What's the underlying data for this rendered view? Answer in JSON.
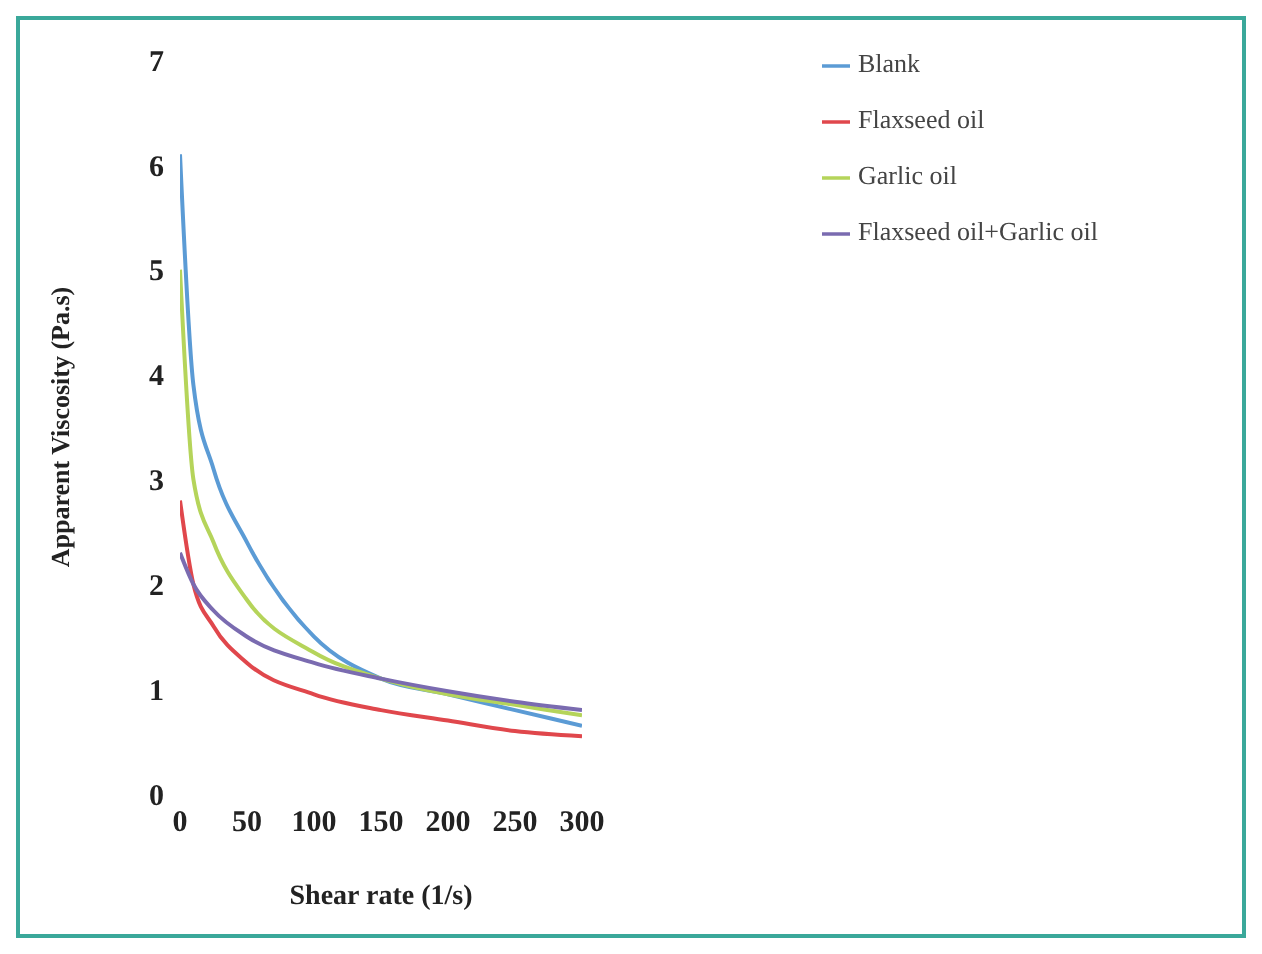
{
  "chart_data": {
    "type": "line",
    "xlabel": "Shear rate (1/s)",
    "ylabel": "Apparent Viscosity (Pa.s)",
    "x": [
      0,
      10,
      25,
      50,
      100,
      150,
      200,
      250,
      300
    ],
    "series": [
      {
        "name": "Blank",
        "color": "#5b9bd5",
        "values": [
          6.1,
          3.9,
          3.1,
          2.4,
          1.5,
          1.1,
          0.95,
          0.8,
          0.65
        ]
      },
      {
        "name": "Flaxseed oil",
        "color": "#e0474c",
        "values": [
          2.8,
          2.0,
          1.6,
          1.25,
          0.95,
          0.8,
          0.7,
          0.6,
          0.55
        ]
      },
      {
        "name": "Garlic oil",
        "color": "#b5d45a",
        "values": [
          5.0,
          3.0,
          2.4,
          1.85,
          1.35,
          1.1,
          0.95,
          0.85,
          0.75
        ]
      },
      {
        "name": "Flaxseed oil+Garlic oil",
        "color": "#7a6bb0",
        "values": [
          2.3,
          2.0,
          1.75,
          1.5,
          1.25,
          1.1,
          0.98,
          0.88,
          0.8
        ]
      }
    ],
    "xlim": [
      0,
      300
    ],
    "xticks": [
      0,
      50,
      100,
      150,
      200,
      250,
      300
    ],
    "ylim": [
      0,
      7
    ],
    "yticks": [
      0,
      1,
      2,
      3,
      4,
      5,
      6,
      7
    ],
    "legend": "top right",
    "grid": false,
    "marker": "none",
    "line_style": "solid"
  }
}
